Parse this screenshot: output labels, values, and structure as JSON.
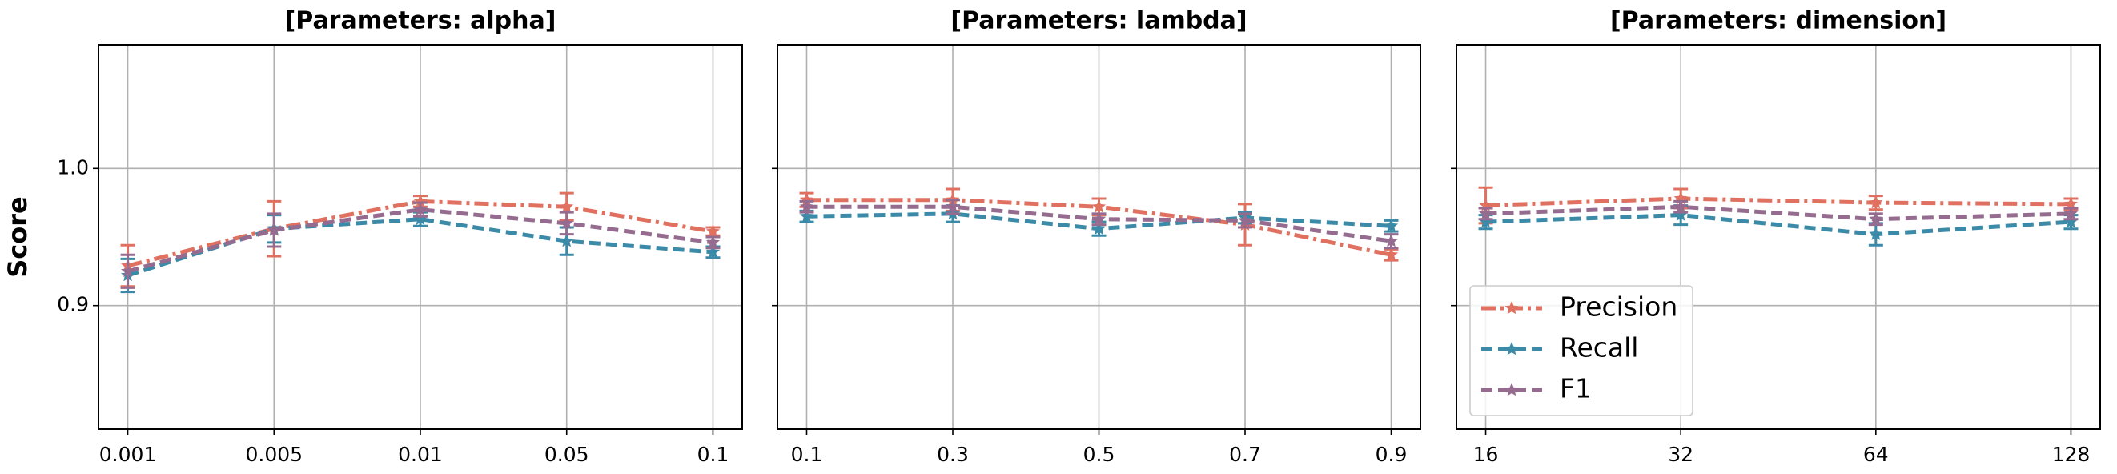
{
  "chart_data": [
    {
      "type": "line",
      "title": "[Parameters: alpha]",
      "y_label": "Score",
      "categories": [
        "0.001",
        "0.005",
        "0.01",
        "0.05",
        "0.1"
      ],
      "series": [
        {
          "color": "#e07060",
          "dash": "dashdot",
          "values": [
            0.929,
            0.956,
            0.976,
            0.972,
            0.954
          ],
          "errors": [
            0.015,
            0.02,
            0.004,
            0.01,
            0.003
          ]
        },
        {
          "color": "#3a8aa8",
          "dash": "dashed",
          "values": [
            0.922,
            0.956,
            0.963,
            0.947,
            0.939
          ],
          "errors": [
            0.012,
            0.01,
            0.005,
            0.01,
            0.004
          ]
        },
        {
          "color": "#956c8f",
          "dash": "dashed",
          "values": [
            0.925,
            0.955,
            0.97,
            0.96,
            0.946
          ],
          "errors": [
            0.012,
            0.012,
            0.005,
            0.008,
            0.004
          ]
        }
      ],
      "ylim": [
        0.81,
        1.09
      ],
      "yticks": [
        0.9,
        {
          "value": 1,
          "label": "1.0"
        }
      ],
      "show_ytick_labels": true,
      "grid": true
    },
    {
      "type": "line",
      "title": "[Parameters: lambda]",
      "categories": [
        "0.1",
        "0.3",
        "0.5",
        "0.7",
        "0.9"
      ],
      "series": [
        {
          "color": "#e07060",
          "dash": "dashdot",
          "values": [
            0.977,
            0.977,
            0.972,
            0.959,
            0.937
          ],
          "errors": [
            0.005,
            0.008,
            0.006,
            0.015,
            0.004
          ]
        },
        {
          "color": "#3a8aa8",
          "dash": "dashed",
          "values": [
            0.965,
            0.967,
            0.956,
            0.964,
            0.958
          ],
          "errors": [
            0.004,
            0.006,
            0.005,
            0.004,
            0.004
          ]
        },
        {
          "color": "#956c8f",
          "dash": "dashed",
          "values": [
            0.972,
            0.972,
            0.963,
            0.962,
            0.947
          ],
          "errors": [
            0.004,
            0.005,
            0.004,
            0.005,
            0.005
          ]
        }
      ],
      "ylim": [
        0.81,
        1.09
      ],
      "yticks": [
        0.9,
        {
          "value": 1,
          "label": "1.0"
        }
      ],
      "show_ytick_labels": false,
      "grid": true
    },
    {
      "type": "line",
      "title": "[Parameters: dimension]",
      "categories": [
        "16",
        "32",
        "64",
        "128"
      ],
      "series": [
        {
          "name": "Precision",
          "color": "#e07060",
          "dash": "dashdot",
          "values": [
            0.973,
            0.978,
            0.975,
            0.974
          ],
          "errors": [
            0.013,
            0.007,
            0.005,
            0.004
          ]
        },
        {
          "name": "Recall",
          "color": "#3a8aa8",
          "dash": "dashed",
          "values": [
            0.961,
            0.966,
            0.952,
            0.961
          ],
          "errors": [
            0.005,
            0.007,
            0.008,
            0.005
          ]
        },
        {
          "name": "F1",
          "color": "#956c8f",
          "dash": "dashed",
          "values": [
            0.967,
            0.972,
            0.963,
            0.967
          ],
          "errors": [
            0.004,
            0.004,
            0.004,
            0.004
          ]
        }
      ],
      "ylim": [
        0.81,
        1.09
      ],
      "yticks": [
        0.9,
        {
          "value": 1,
          "label": "1.0"
        }
      ],
      "show_ytick_labels": false,
      "grid": true,
      "legend": "lower left"
    }
  ]
}
